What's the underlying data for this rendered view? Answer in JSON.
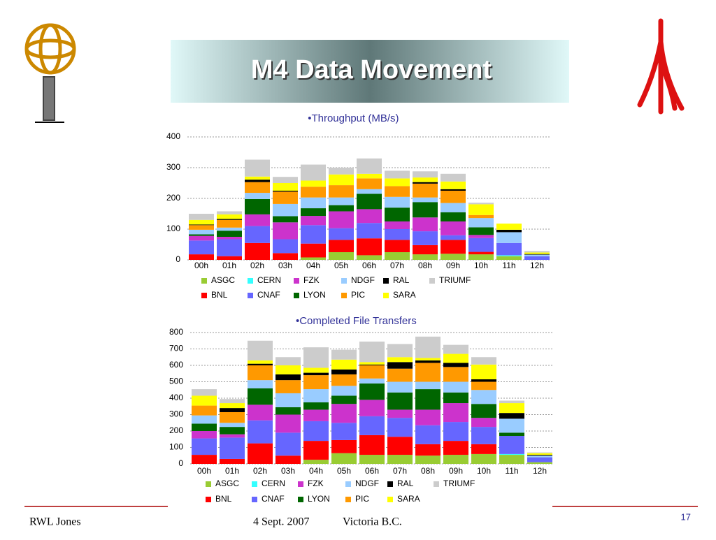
{
  "slide": {
    "title": "M4 Data Movement",
    "footer": {
      "author": "RWL Jones",
      "date": "4 Sept. 2007",
      "place": "Victoria B.C.",
      "page": "17"
    }
  },
  "chart_data": [
    {
      "type": "bar",
      "stacked": true,
      "title": "Throughput (MB/s)",
      "grid": true,
      "legend": "bottom",
      "categories": [
        "00h",
        "01h",
        "02h",
        "03h",
        "04h",
        "05h",
        "06h",
        "07h",
        "08h",
        "09h",
        "10h",
        "11h",
        "12h"
      ],
      "ylim": [
        0,
        400
      ],
      "yticks": [
        0,
        100,
        200,
        300,
        400
      ],
      "series": [
        {
          "name": "ASGC",
          "color": "#99cc33",
          "values": [
            0,
            0,
            0,
            0,
            8,
            25,
            15,
            25,
            18,
            20,
            18,
            12,
            0
          ]
        },
        {
          "name": "BNL",
          "color": "#ff0000",
          "values": [
            18,
            12,
            55,
            22,
            45,
            40,
            55,
            40,
            30,
            45,
            8,
            0,
            0
          ]
        },
        {
          "name": "CERN",
          "color": "#33ffff",
          "values": [
            0,
            0,
            0,
            0,
            0,
            0,
            0,
            0,
            0,
            0,
            0,
            3,
            0
          ]
        },
        {
          "name": "CNAF",
          "color": "#6666ff",
          "values": [
            45,
            55,
            55,
            45,
            60,
            38,
            50,
            35,
            45,
            15,
            45,
            40,
            12
          ]
        },
        {
          "name": "FZK",
          "color": "#cc33cc",
          "values": [
            15,
            8,
            38,
            55,
            30,
            55,
            45,
            25,
            45,
            45,
            10,
            0,
            0
          ]
        },
        {
          "name": "LYON",
          "color": "#006600",
          "values": [
            5,
            20,
            50,
            20,
            25,
            20,
            50,
            45,
            50,
            30,
            25,
            0,
            0
          ]
        },
        {
          "name": "NDGF",
          "color": "#99ccff",
          "values": [
            15,
            10,
            20,
            40,
            35,
            25,
            15,
            35,
            15,
            30,
            30,
            35,
            5
          ]
        },
        {
          "name": "PIC",
          "color": "#ff9900",
          "values": [
            15,
            25,
            35,
            40,
            35,
            40,
            35,
            35,
            45,
            40,
            10,
            0,
            0
          ]
        },
        {
          "name": "RAL",
          "color": "#000000",
          "values": [
            2,
            3,
            8,
            3,
            0,
            0,
            0,
            0,
            5,
            5,
            0,
            8,
            2
          ]
        },
        {
          "name": "SARA",
          "color": "#ffff00",
          "values": [
            15,
            15,
            10,
            25,
            20,
            35,
            15,
            25,
            15,
            25,
            35,
            20,
            5
          ]
        },
        {
          "name": "TRIUMF",
          "color": "#cccccc",
          "values": [
            20,
            10,
            55,
            20,
            52,
            22,
            50,
            25,
            20,
            25,
            5,
            0,
            5
          ]
        }
      ]
    },
    {
      "type": "bar",
      "stacked": true,
      "title": "Completed File Transfers",
      "grid": true,
      "legend": "bottom",
      "categories": [
        "00h",
        "01h",
        "02h",
        "03h",
        "04h",
        "05h",
        "06h",
        "07h",
        "08h",
        "09h",
        "10h",
        "11h",
        "12h"
      ],
      "ylim": [
        0,
        800
      ],
      "yticks": [
        0,
        100,
        200,
        300,
        400,
        500,
        600,
        700,
        800
      ],
      "series": [
        {
          "name": "ASGC",
          "color": "#99cc33",
          "values": [
            0,
            0,
            0,
            0,
            25,
            65,
            55,
            55,
            50,
            55,
            60,
            55,
            10
          ]
        },
        {
          "name": "BNL",
          "color": "#ff0000",
          "values": [
            55,
            30,
            125,
            50,
            115,
            80,
            120,
            110,
            70,
            85,
            60,
            0,
            0
          ]
        },
        {
          "name": "CERN",
          "color": "#33ffff",
          "values": [
            0,
            0,
            0,
            0,
            0,
            0,
            0,
            0,
            0,
            0,
            0,
            5,
            0
          ]
        },
        {
          "name": "CNAF",
          "color": "#6666ff",
          "values": [
            100,
            130,
            140,
            140,
            120,
            105,
            115,
            115,
            115,
            115,
            105,
            110,
            30
          ]
        },
        {
          "name": "FZK",
          "color": "#cc33cc",
          "values": [
            45,
            20,
            95,
            110,
            70,
            115,
            100,
            50,
            95,
            115,
            55,
            0,
            0
          ]
        },
        {
          "name": "LYON",
          "color": "#006600",
          "values": [
            45,
            45,
            100,
            45,
            45,
            50,
            100,
            105,
            125,
            65,
            85,
            20,
            0
          ]
        },
        {
          "name": "NDGF",
          "color": "#99ccff",
          "values": [
            50,
            25,
            50,
            85,
            80,
            60,
            30,
            65,
            45,
            65,
            85,
            85,
            10
          ]
        },
        {
          "name": "PIC",
          "color": "#ff9900",
          "values": [
            60,
            65,
            90,
            80,
            85,
            70,
            80,
            80,
            115,
            90,
            50,
            0,
            0
          ]
        },
        {
          "name": "RAL",
          "color": "#000000",
          "values": [
            0,
            25,
            10,
            35,
            15,
            30,
            5,
            40,
            15,
            25,
            15,
            35,
            5
          ]
        },
        {
          "name": "SARA",
          "color": "#ffff00",
          "values": [
            60,
            30,
            20,
            55,
            30,
            60,
            15,
            30,
            15,
            55,
            90,
            60,
            10
          ]
        },
        {
          "name": "TRIUMF",
          "color": "#cccccc",
          "values": [
            40,
            25,
            120,
            50,
            125,
            60,
            125,
            80,
            130,
            55,
            45,
            15,
            5
          ]
        }
      ]
    }
  ]
}
